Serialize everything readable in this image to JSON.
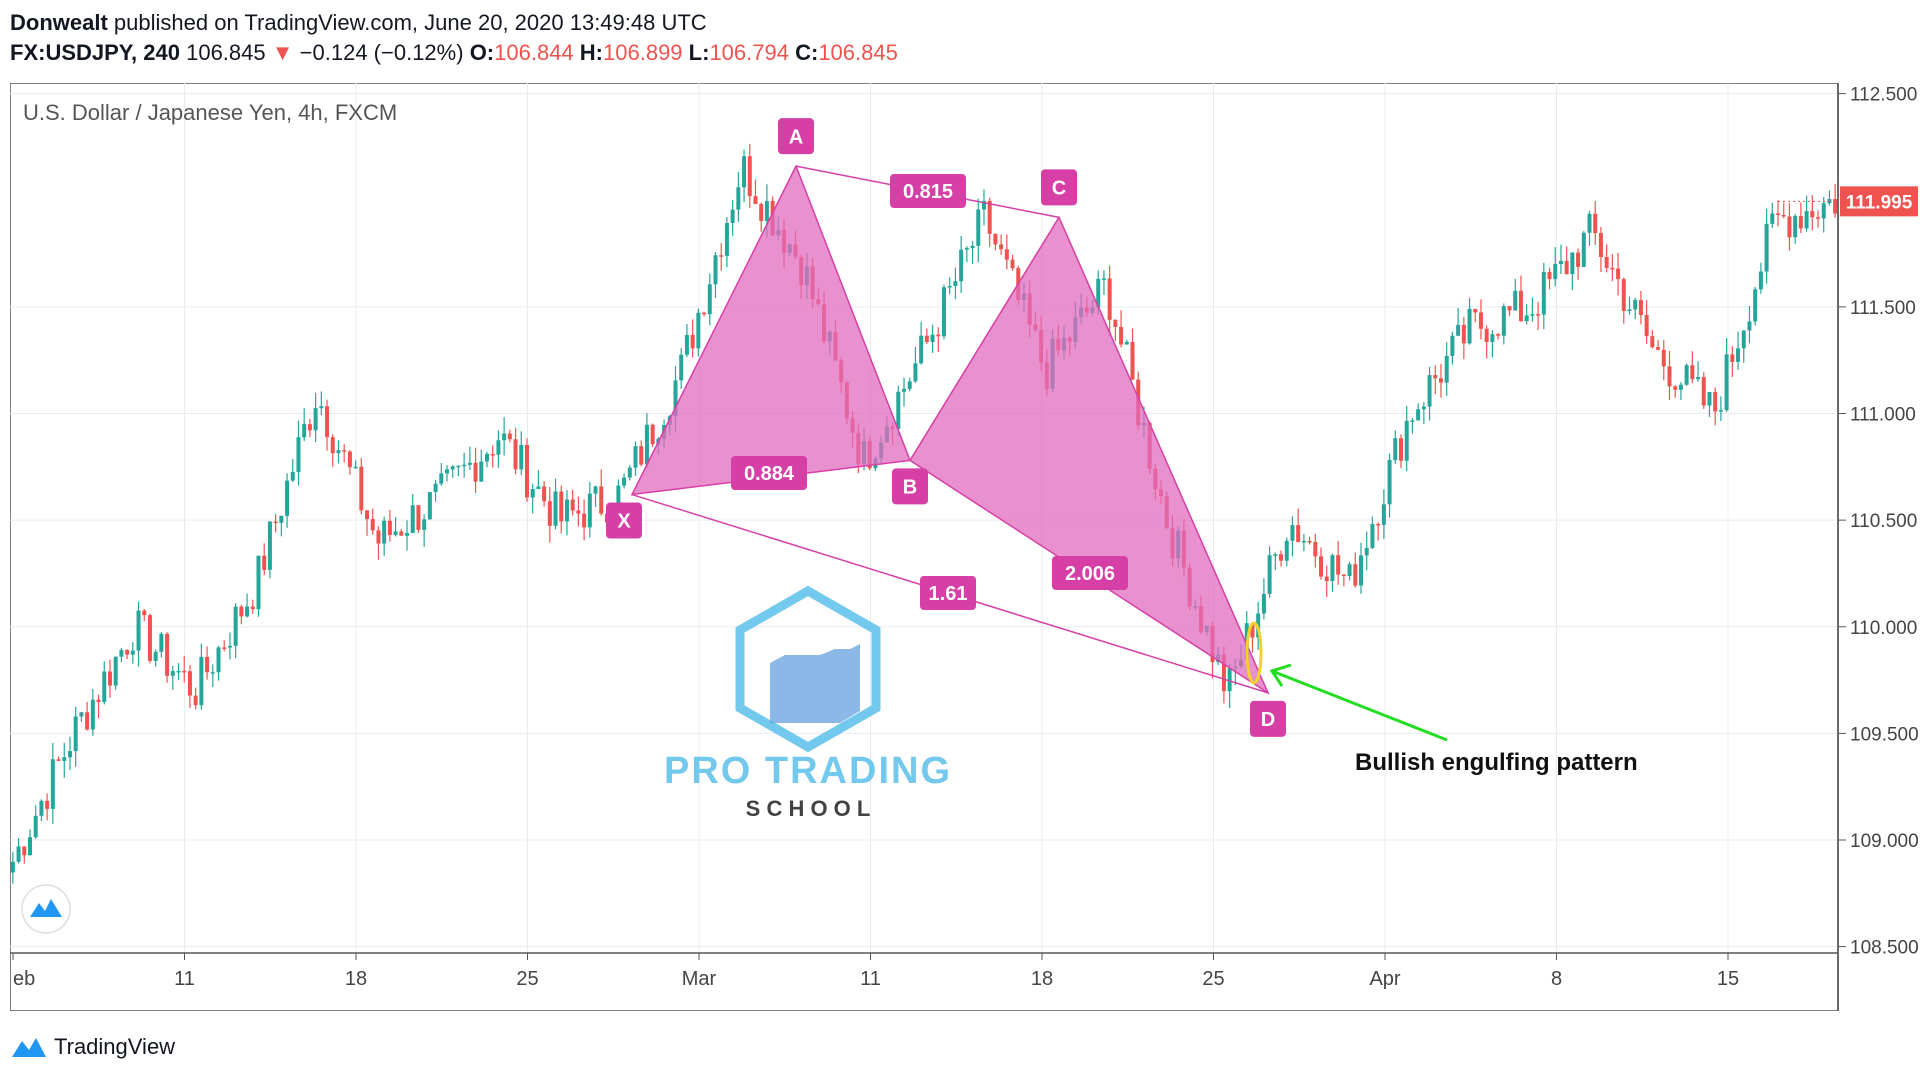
{
  "header": {
    "author": "Donwealt",
    "published_text": "published on TradingView.com, June 20, 2020 13:49:48 UTC",
    "symbol": "FX:USDJPY, 240",
    "last": "106.845",
    "change": "−0.124 (−0.12%)",
    "o_label": "O:",
    "o_value": "106.844",
    "h_label": "H:",
    "h_value": "106.899",
    "l_label": "L:",
    "l_value": "106.794",
    "c_label": "C:",
    "c_value": "106.845"
  },
  "chart_title": "U.S. Dollar / Japanese Yen, 4h, FXCM",
  "price_tag": "111.995",
  "footer": {
    "brand": "TradingView"
  },
  "watermark": {
    "line1": "PRO TRADING",
    "line2": "S C H O O L"
  },
  "annotation": {
    "text": "Bullish engulfing pattern"
  },
  "colors": {
    "pattern_fill": "#e26bbd",
    "pattern_label": "#d63fa6",
    "up_candle": "#26a69a",
    "down_candle": "#ef5350",
    "arrow": "#22dd22",
    "price_tag": "#ef5350"
  },
  "chart_data": {
    "type": "candlestick",
    "title": "U.S. Dollar / Japanese Yen, 4h, FXCM",
    "y_ticks": [
      "112.500",
      "111.500",
      "111.000",
      "110.500",
      "110.000",
      "109.500",
      "109.000",
      "108.500"
    ],
    "ylim": [
      108.47,
      112.55
    ],
    "x_ticks": [
      "eb",
      "11",
      "18",
      "25",
      "Mar",
      "11",
      "18",
      "25",
      "Apr",
      "8",
      "15"
    ],
    "last_price": 111.995,
    "harmonic_pattern": {
      "points": [
        {
          "label": "X",
          "price": 110.62
        },
        {
          "label": "A",
          "price": 112.16
        },
        {
          "label": "B",
          "price": 110.78
        },
        {
          "label": "C",
          "price": 111.92
        },
        {
          "label": "D",
          "price": 109.69
        }
      ],
      "ratios": [
        {
          "legs": "XB",
          "label": "0.884"
        },
        {
          "legs": "AC",
          "label": "0.815"
        },
        {
          "legs": "BD",
          "label": "2.006"
        },
        {
          "legs": "XD",
          "label": "1.61"
        }
      ]
    },
    "series": [
      {
        "name": "key swing closes",
        "values": [
          108.9,
          109.5,
          110.0,
          109.7,
          110.2,
          111.1,
          110.4,
          110.6,
          110.9,
          110.5,
          110.62,
          111.2,
          112.16,
          111.7,
          110.78,
          111.3,
          111.92,
          111.2,
          111.6,
          110.5,
          109.69,
          110.5,
          110.2,
          111.0,
          111.4,
          111.5,
          111.85,
          111.3,
          111.0,
          111.9,
          112.0
        ]
      }
    ]
  }
}
